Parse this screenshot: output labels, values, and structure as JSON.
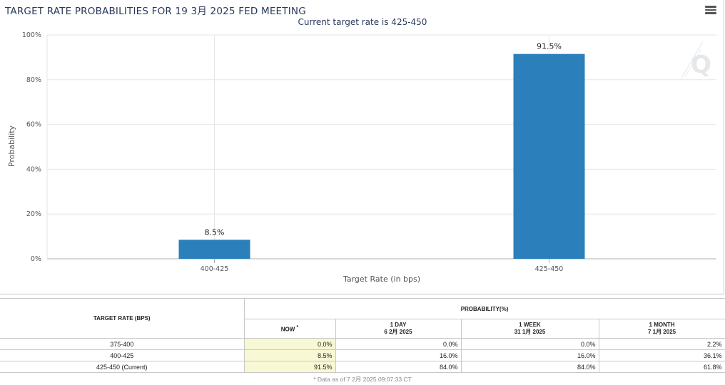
{
  "header": {
    "title": "TARGET RATE PROBABILITIES FOR 19 3月 2025 FED MEETING",
    "subtitle": "Current target rate is 425-450"
  },
  "chart_data": {
    "type": "bar",
    "categories": [
      "400-425",
      "425-450"
    ],
    "values": [
      8.5,
      91.5
    ],
    "value_labels": [
      "8.5%",
      "91.5%"
    ],
    "xlabel": "Target Rate (in bps)",
    "ylabel": "Probability",
    "ylim": [
      0,
      100
    ],
    "yticks": [
      "0%",
      "20%",
      "40%",
      "60%",
      "80%",
      "100%"
    ],
    "bar_color": "#2b7fba",
    "grid": true
  },
  "table": {
    "col_target": "TARGET RATE (BPS)",
    "col_prob": "PROBABILITY(%)",
    "sub": {
      "now": "NOW",
      "now_mark": "*",
      "day_label": "1 DAY",
      "day_date": "6 2月 2025",
      "week_label": "1 WEEK",
      "week_date": "31 1月 2025",
      "month_label": "1 MONTH",
      "month_date": "7 1月 2025"
    },
    "rows": [
      {
        "rate": "375-400",
        "now": "0.0%",
        "day": "0.0%",
        "week": "0.0%",
        "month": "2.2%"
      },
      {
        "rate": "400-425",
        "now": "8.5%",
        "day": "16.0%",
        "week": "16.0%",
        "month": "36.1%"
      },
      {
        "rate": "425-450 (Current)",
        "now": "91.5%",
        "day": "84.0%",
        "week": "84.0%",
        "month": "61.8%"
      }
    ],
    "footnote": "* Data as of 7 2月 2025 09:07:33 CT"
  },
  "colors": {
    "accent": "#2b7fba",
    "now_column": "#f8f8d4",
    "title": "#2a3a5c"
  },
  "icons": {
    "menu": "hamburger-menu-icon",
    "logo": "q-logo-icon"
  }
}
